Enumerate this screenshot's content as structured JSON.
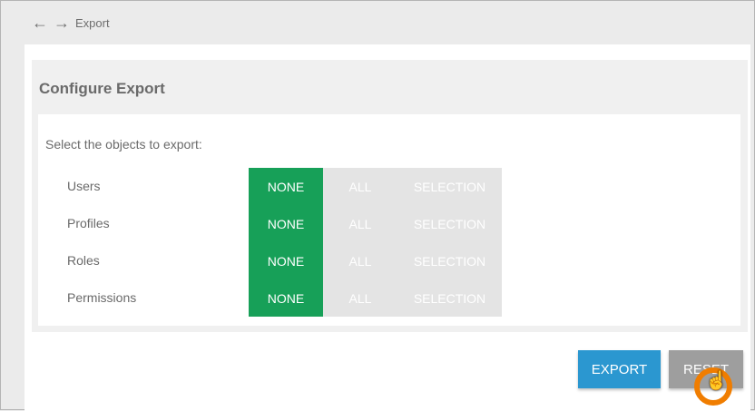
{
  "header": {
    "breadcrumb": "Export",
    "back_icon": "arrow-left-icon",
    "forward_icon": "arrow-right-icon"
  },
  "panel": {
    "title": "Configure Export",
    "prompt": "Select the objects to export:"
  },
  "rows": [
    {
      "label": "Users",
      "options": [
        "NONE",
        "ALL",
        "SELECTION"
      ],
      "selected": "NONE"
    },
    {
      "label": "Profiles",
      "options": [
        "NONE",
        "ALL",
        "SELECTION"
      ],
      "selected": "NONE"
    },
    {
      "label": "Roles",
      "options": [
        "NONE",
        "ALL",
        "SELECTION"
      ],
      "selected": "NONE"
    },
    {
      "label": "Permissions",
      "options": [
        "NONE",
        "ALL",
        "SELECTION"
      ],
      "selected": "NONE"
    }
  ],
  "actions": {
    "export": "EXPORT",
    "reset": "RESET"
  },
  "colors": {
    "selected": "#17a058",
    "export": "#2b97d0",
    "reset": "#9e9e9e",
    "cursor_ring": "#f07d00"
  }
}
